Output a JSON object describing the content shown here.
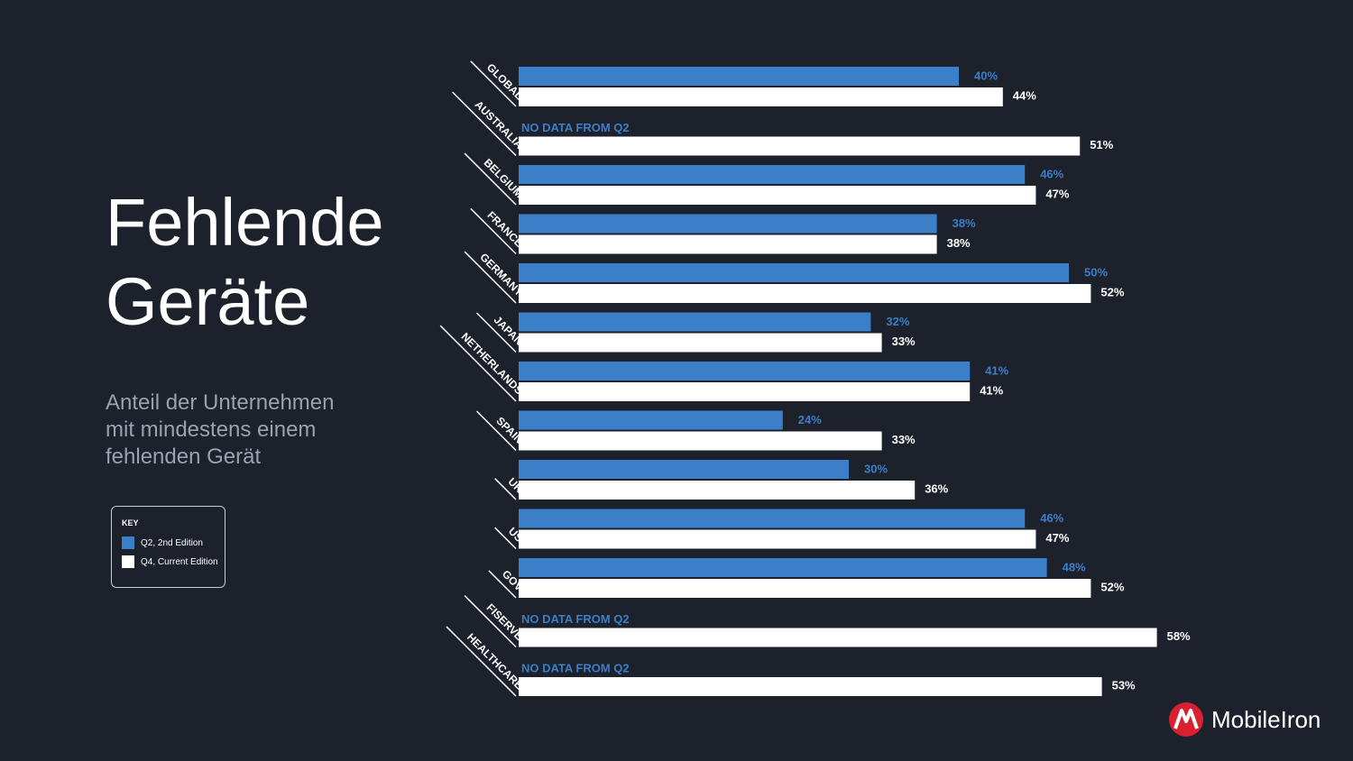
{
  "slide": {
    "title_line1": "Fehlende",
    "title_line2": "Geräte",
    "subtitle_line1": "Anteil der Unternehmen",
    "subtitle_line2": "mit mindestens einem",
    "subtitle_line3": "fehlenden Gerät"
  },
  "key": {
    "title": "KEY",
    "items": [
      {
        "label": "Q2, 2nd Edition",
        "color": "#3b7fc9"
      },
      {
        "label": "Q4, Current Edition",
        "color": "#ffffff"
      }
    ]
  },
  "logo": {
    "text": "MobileIron",
    "color": "#d8202f",
    "icon": "mobileiron-logo-icon"
  },
  "chart_data": {
    "type": "bar",
    "orientation": "horizontal",
    "categories": [
      "GLOBAL",
      "AUSTRALIA",
      "BELGIUM",
      "FRANCE",
      "GERMANY",
      "JAPAN",
      "NETHERLANDS",
      "SPAIN",
      "UK",
      "US",
      "GOV",
      "FISERVE",
      "HEALTHCARE"
    ],
    "series": [
      {
        "name": "Q2, 2nd Edition",
        "color": "#3b7fc9",
        "values": [
          40,
          null,
          46,
          38,
          50,
          32,
          41,
          24,
          30,
          46,
          48,
          null,
          null
        ]
      },
      {
        "name": "Q4, Current Edition",
        "color": "#ffffff",
        "values": [
          44,
          51,
          47,
          38,
          52,
          33,
          41,
          33,
          36,
          47,
          52,
          58,
          53
        ]
      }
    ],
    "missing_label": "NO DATA FROM Q2",
    "value_suffix": "%",
    "xlim": [
      0,
      60
    ],
    "grid": false
  }
}
